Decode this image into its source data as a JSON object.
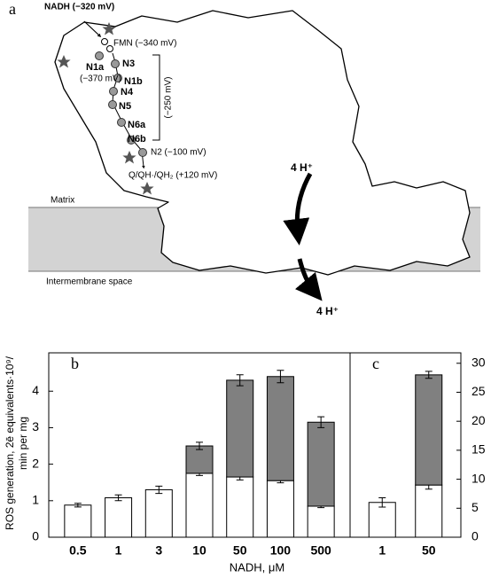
{
  "figure_a": {
    "panel_label": "a",
    "nadh": "NADH (−320 mV)",
    "fmn": "FMN (−340 mV)",
    "n1a": "N1a",
    "n1a_potential": "(−370 mV)",
    "n3": "N3",
    "n1b": "N1b",
    "n4": "N4",
    "n5": "N5",
    "n6a": "N6a",
    "n6b": "N6b",
    "bracket": "(−250 mV)",
    "n2": "N2 (−100 mV)",
    "quinone": "Q/QH·/QH₂ (+120 mV)",
    "protons_in": "4 H⁺",
    "protons_out": "4 H⁺",
    "matrix": "Matrix",
    "ims": "Intermembrane space"
  },
  "chart_data": [
    {
      "type": "bar",
      "panel_label": "b",
      "ylabel": "ROS generation, 2ē equivalents·10⁹/",
      "ylabel2": "min per mg",
      "xlabel": "NADH, μM",
      "categories": [
        "0.5",
        "1",
        "3",
        "10",
        "50",
        "100",
        "500"
      ],
      "series": [
        {
          "color": "#ffffff",
          "values": [
            0.88,
            1.08,
            1.3,
            1.75,
            1.65,
            1.55,
            0.85
          ],
          "errors": [
            0.05,
            0.08,
            0.1,
            0.06,
            0.08,
            0.06,
            0.04
          ]
        },
        {
          "color": "#808080",
          "values": [
            null,
            null,
            null,
            0.75,
            2.65,
            2.85,
            2.3
          ],
          "errors": [
            null,
            null,
            null,
            0.1,
            0.15,
            0.17,
            0.15
          ]
        }
      ],
      "ylim": [
        0,
        5.05
      ],
      "yticks": [
        0,
        1,
        2,
        3,
        4
      ]
    },
    {
      "type": "bar",
      "panel_label": "c",
      "categories": [
        "1",
        "50"
      ],
      "series": [
        {
          "color": "#ffffff",
          "axis": "y2",
          "values": [
            6,
            9
          ],
          "errors": [
            0.8,
            0.7
          ]
        },
        {
          "color": "#808080",
          "axis": "y2",
          "values": [
            null,
            19
          ],
          "errors": [
            null,
            0.6
          ]
        }
      ],
      "y2lim": [
        0,
        31.8
      ],
      "y2ticks": [
        0,
        5,
        10,
        15,
        20,
        25,
        30
      ]
    }
  ]
}
